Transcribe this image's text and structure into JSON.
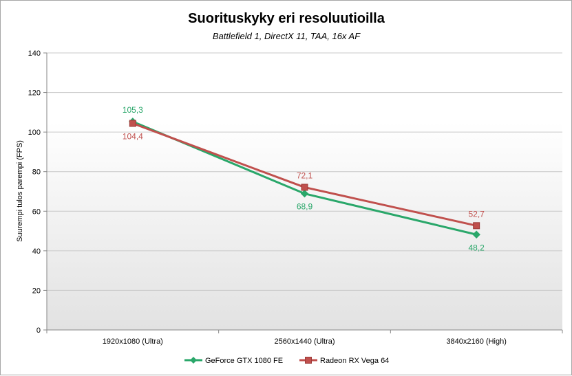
{
  "chart_data": {
    "type": "line",
    "title": "Suorituskyky eri resoluutioilla",
    "subtitle": "Battlefield 1, DirectX 11, TAA, 16x AF",
    "xlabel": "",
    "ylabel": "Suurempi tulos parempi (FPS)",
    "ylim": [
      0,
      140
    ],
    "yticks": [
      0,
      20,
      40,
      60,
      80,
      100,
      120,
      140
    ],
    "categories": [
      "1920x1080 (Ultra)",
      "2560x1440 (Ultra)",
      "3840x2160 (High)"
    ],
    "series": [
      {
        "name": "GeForce GTX 1080 FE",
        "color": "#2aa76a",
        "marker": "diamond",
        "values": [
          105.3,
          68.9,
          48.2
        ],
        "labels": [
          "105,3",
          "68,9",
          "48,2"
        ],
        "label_position": [
          "above",
          "below",
          "below"
        ]
      },
      {
        "name": "Radeon RX Vega 64",
        "color": "#c0504d",
        "marker": "square",
        "values": [
          104.4,
          72.1,
          52.7
        ],
        "labels": [
          "104,4",
          "72,1",
          "52,7"
        ],
        "label_position": [
          "below",
          "above",
          "above"
        ]
      }
    ],
    "grid": true,
    "legend": "bottom"
  }
}
